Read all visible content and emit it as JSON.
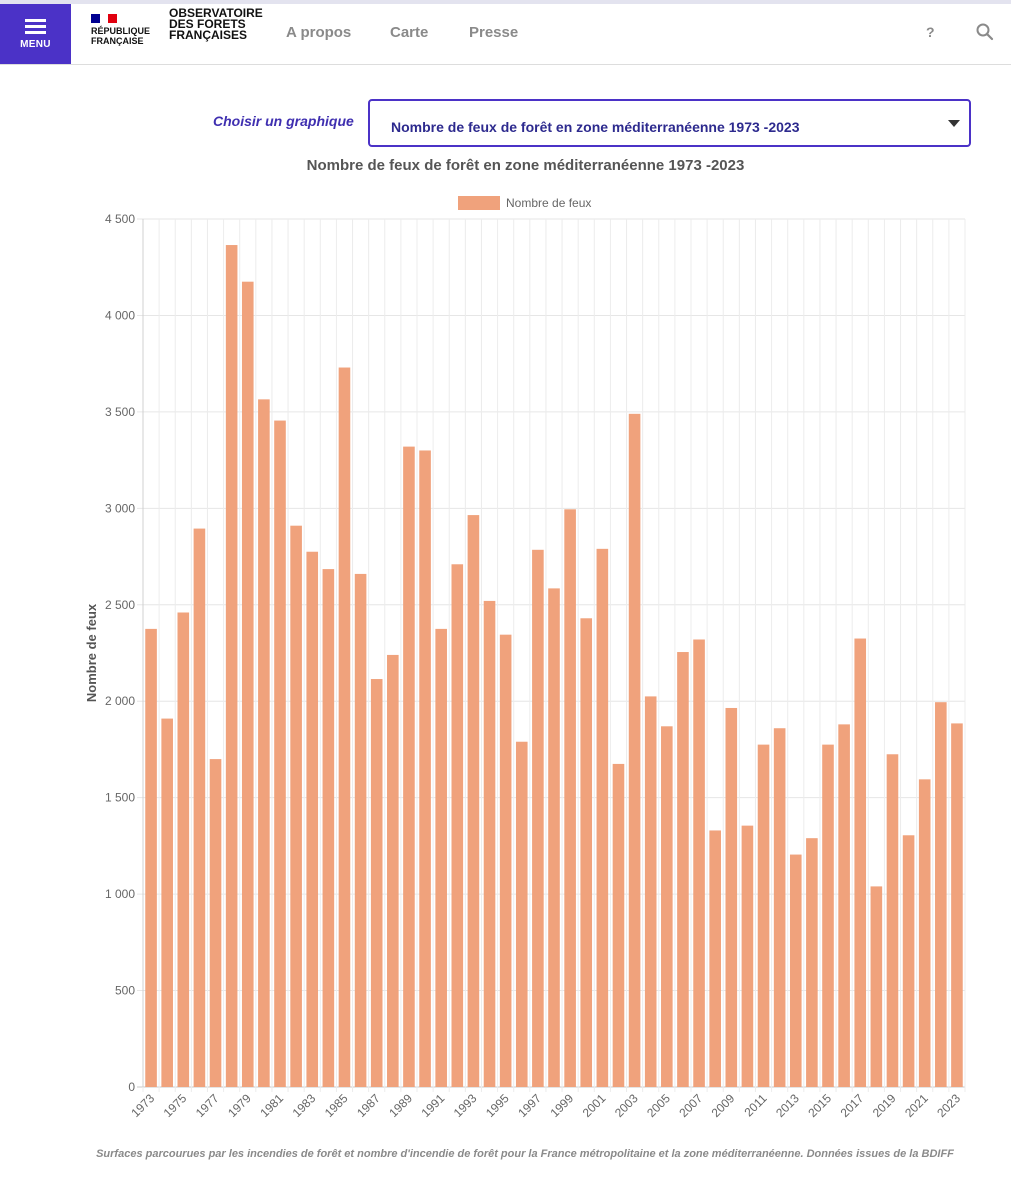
{
  "header": {
    "menu_label": "MENU",
    "logo_line1": "RÉPUBLIQUE",
    "logo_line2": "FRANÇAISE",
    "site_line1": "OBSERVATOIRE",
    "site_line2": "DES FORETS",
    "site_line3": "FRANÇAISES",
    "nav": [
      "A propos",
      "Carte",
      "Presse"
    ],
    "help_label": "?",
    "flag_colors": [
      "#000091",
      "#ffffff",
      "#e1000f"
    ],
    "accent_color": "#4b32c7",
    "icons": {
      "menu": "hamburger-icon",
      "search": "search-icon"
    }
  },
  "selector": {
    "label": "Choisir un graphique",
    "value": "Nombre de feux de forêt en zone méditerranéenne 1973 -2023"
  },
  "caption": "Surfaces parcourues par les incendies de forêt et nombre d'incendie de forêt pour la France métropolitaine et la zone méditerranéenne. Données issues de la BDIFF",
  "chart_data": {
    "type": "bar",
    "title": "Nombre de feux de forêt en zone méditerranéenne 1973 -2023",
    "ylabel": "Nombre de feux",
    "xlabel": "",
    "ylim": [
      0,
      4500
    ],
    "yticks": [
      0,
      500,
      1000,
      1500,
      2000,
      2500,
      3000,
      3500,
      4000,
      4500
    ],
    "ytick_labels": [
      "0",
      "500",
      "1 000",
      "1 500",
      "2 000",
      "2 500",
      "3 000",
      "3 500",
      "4 000",
      "4 500"
    ],
    "grid": true,
    "legend_position": "top-center",
    "bar_color": "#f0a27c",
    "categories": [
      "1973",
      "1974",
      "1975",
      "1976",
      "1977",
      "1978",
      "1979",
      "1980",
      "1981",
      "1982",
      "1983",
      "1984",
      "1985",
      "1986",
      "1987",
      "1988",
      "1989",
      "1990",
      "1991",
      "1992",
      "1993",
      "1994",
      "1995",
      "1996",
      "1997",
      "1998",
      "1999",
      "2000",
      "2001",
      "2002",
      "2003",
      "2004",
      "2005",
      "2006",
      "2007",
      "2008",
      "2009",
      "2010",
      "2011",
      "2012",
      "2013",
      "2014",
      "2015",
      "2016",
      "2017",
      "2018",
      "2019",
      "2020",
      "2021",
      "2022",
      "2023"
    ],
    "x_tick_labels": [
      "1973",
      "1975",
      "1977",
      "1979",
      "1981",
      "1983",
      "1985",
      "1987",
      "1989",
      "1991",
      "1993",
      "1995",
      "1997",
      "1999",
      "2001",
      "2003",
      "2005",
      "2007",
      "2009",
      "2011",
      "2013",
      "2015",
      "2017",
      "2019",
      "2021",
      "2023"
    ],
    "series": [
      {
        "name": "Nombre de feux",
        "values": [
          2375,
          1910,
          2460,
          2895,
          1700,
          4365,
          4175,
          3565,
          3455,
          2910,
          2775,
          2685,
          3730,
          2660,
          2115,
          2240,
          3320,
          3300,
          2375,
          2710,
          2965,
          2520,
          2345,
          1790,
          2785,
          2585,
          2995,
          2430,
          2790,
          1675,
          3490,
          2025,
          1870,
          2255,
          2320,
          1330,
          1965,
          1355,
          1775,
          1860,
          1205,
          1290,
          1775,
          1880,
          2325,
          1040,
          1725,
          1305,
          1595,
          1995,
          1885
        ]
      }
    ]
  }
}
